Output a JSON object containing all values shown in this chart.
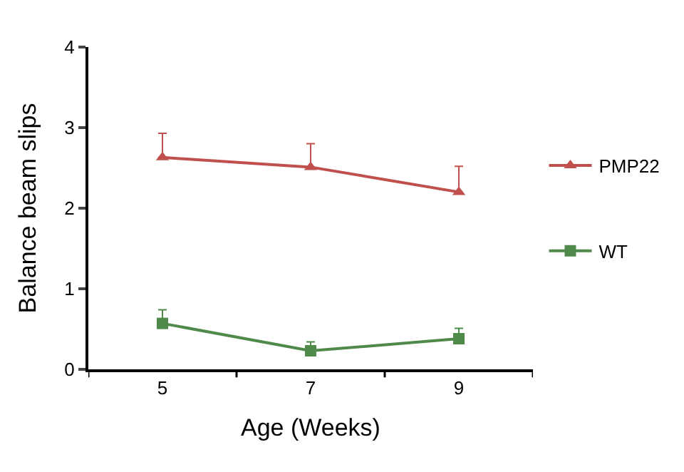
{
  "chart_data": {
    "type": "line",
    "xlabel": "Age (Weeks)",
    "ylabel": "Balance beam slips",
    "categories": [
      "5",
      "7",
      "9"
    ],
    "series": [
      {
        "name": "PMP22",
        "color": "#c0504d",
        "marker": "triangle",
        "values": [
          2.63,
          2.51,
          2.2
        ],
        "errors": [
          [
            2.63,
            2.93
          ],
          [
            2.51,
            2.8
          ],
          [
            2.2,
            2.52
          ]
        ]
      },
      {
        "name": "WT",
        "color": "#4f8a4b",
        "marker": "square",
        "values": [
          0.57,
          0.23,
          0.38
        ],
        "errors": [
          [
            0.57,
            0.74
          ],
          [
            0.23,
            0.34
          ],
          [
            0.38,
            0.51
          ]
        ]
      }
    ],
    "ylim": [
      0,
      4
    ],
    "yticks": [
      0,
      1,
      2,
      3,
      4
    ],
    "legend": "right"
  }
}
